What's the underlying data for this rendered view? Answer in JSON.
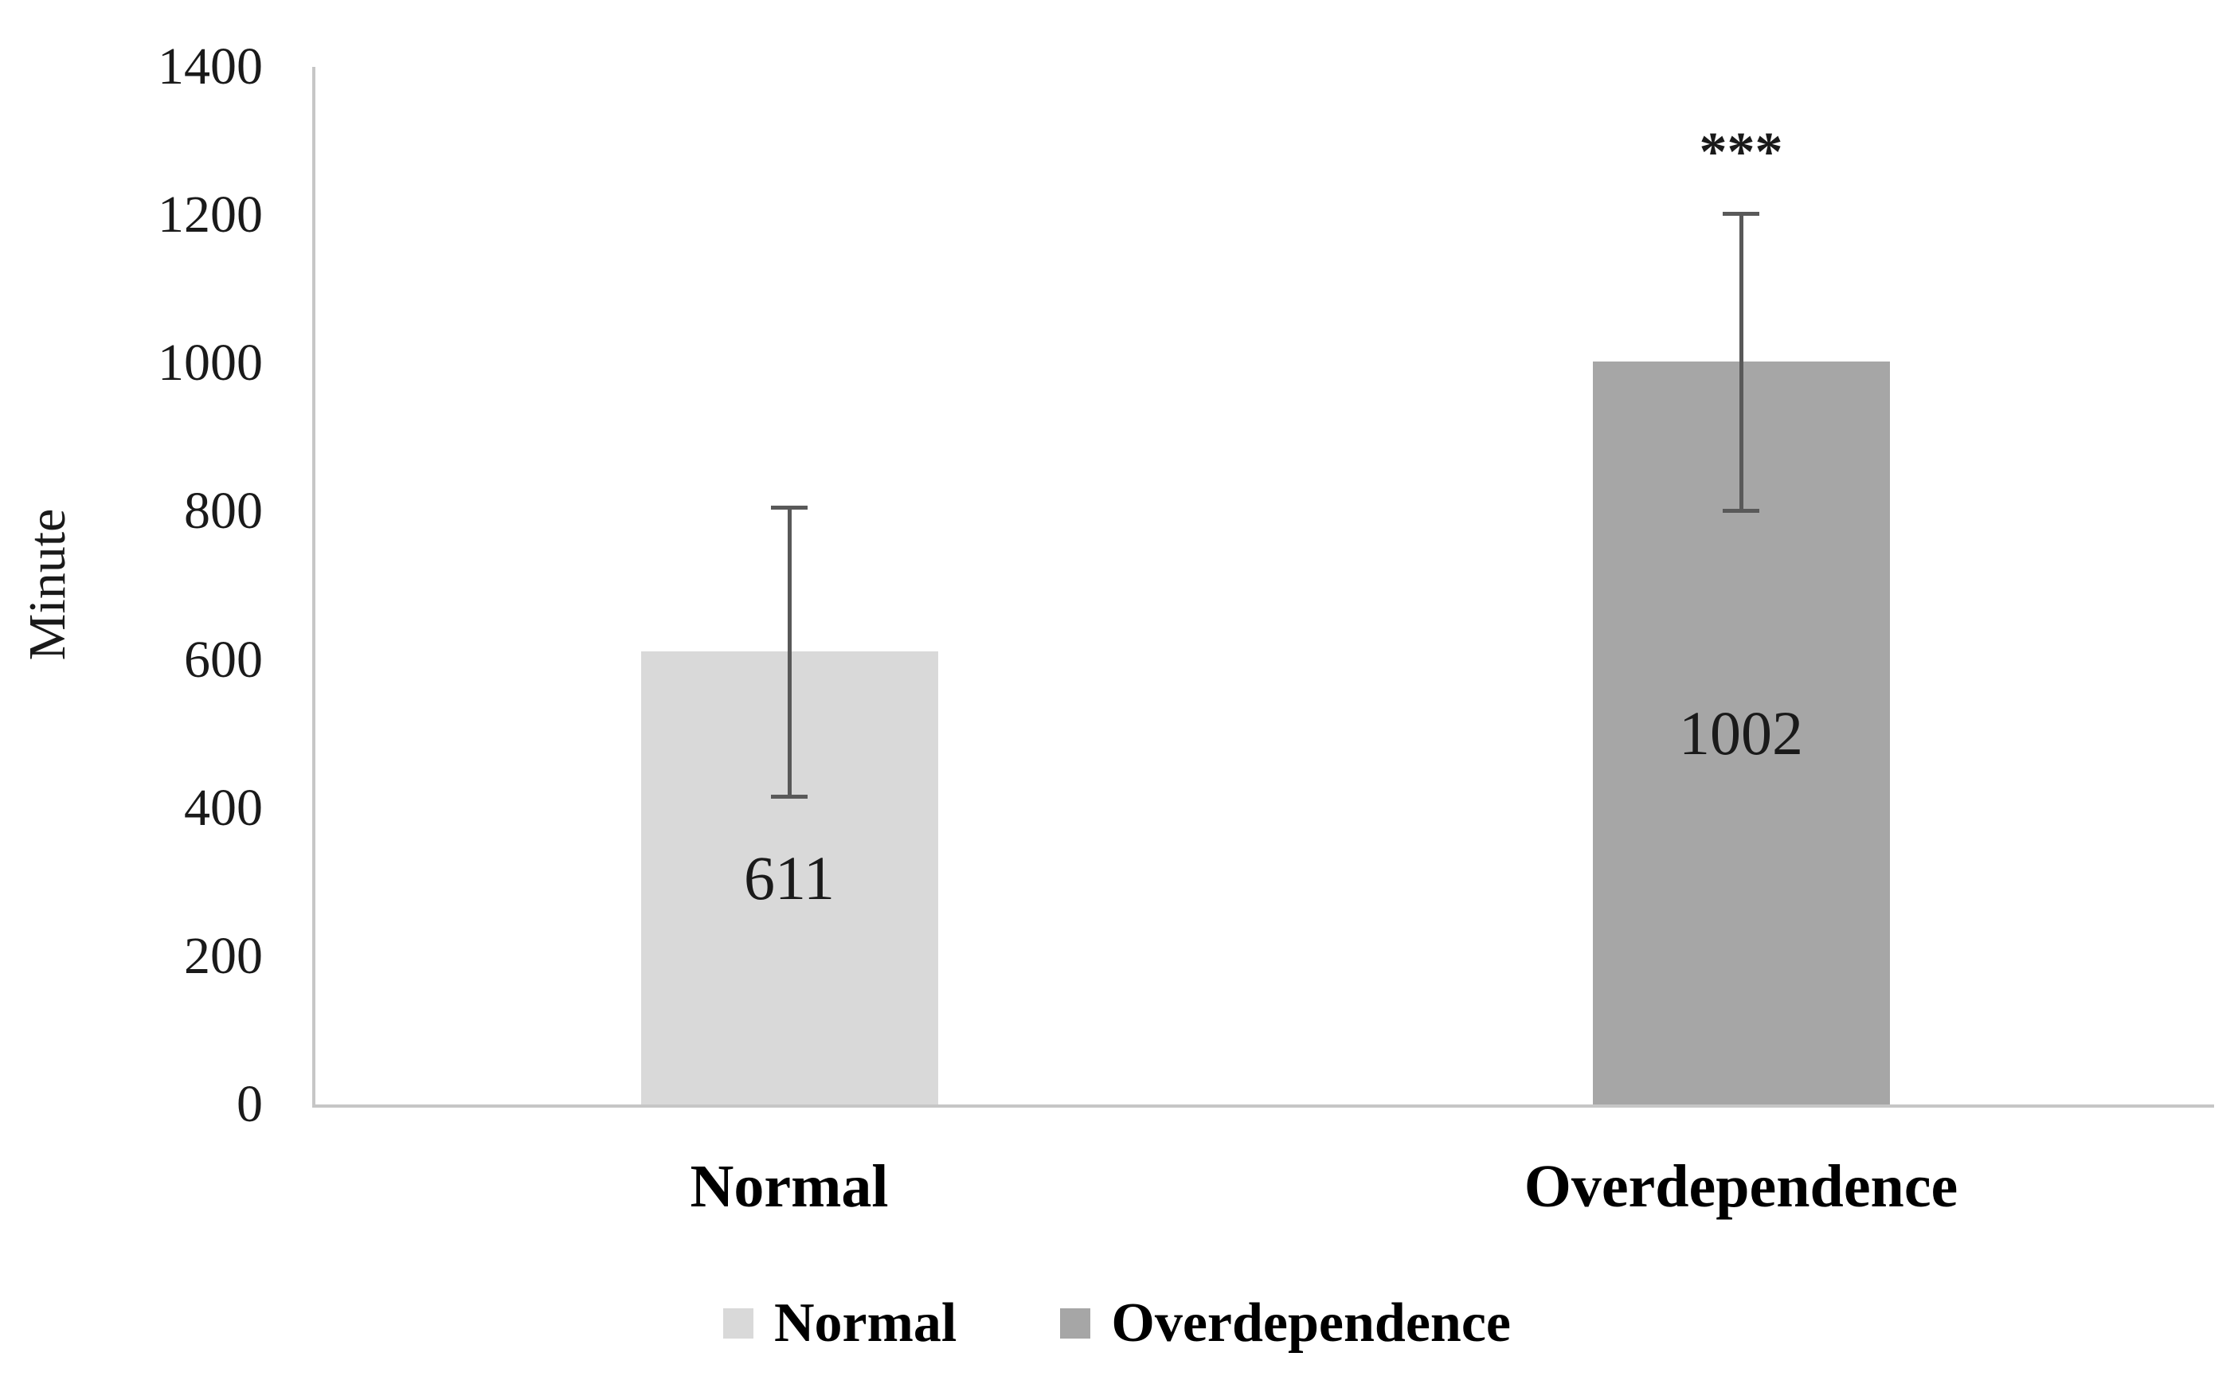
{
  "chart_data": {
    "type": "bar",
    "title": "",
    "xlabel": "",
    "ylabel": "Minute",
    "categories": [
      "Normal",
      "Overdependence"
    ],
    "values": [
      611,
      1002
    ],
    "errors": [
      195,
      200
    ],
    "bar_labels": [
      "611",
      "1002"
    ],
    "significance": [
      "",
      "***"
    ],
    "ylim": [
      0,
      1400
    ],
    "yticks": [
      0,
      200,
      400,
      600,
      800,
      1000,
      1200,
      1400
    ],
    "grid": false,
    "legend_position": "bottom",
    "legend": {
      "entries": [
        {
          "label": "Normal",
          "color": "#d9d9d9"
        },
        {
          "label": "Overdependence",
          "color": "#a6a6a6"
        }
      ]
    },
    "bar_colors": [
      "#d9d9d9",
      "#a6a6a6"
    ],
    "error_bar_color": "#595959",
    "axis_line_color": "#c6c6c6"
  }
}
